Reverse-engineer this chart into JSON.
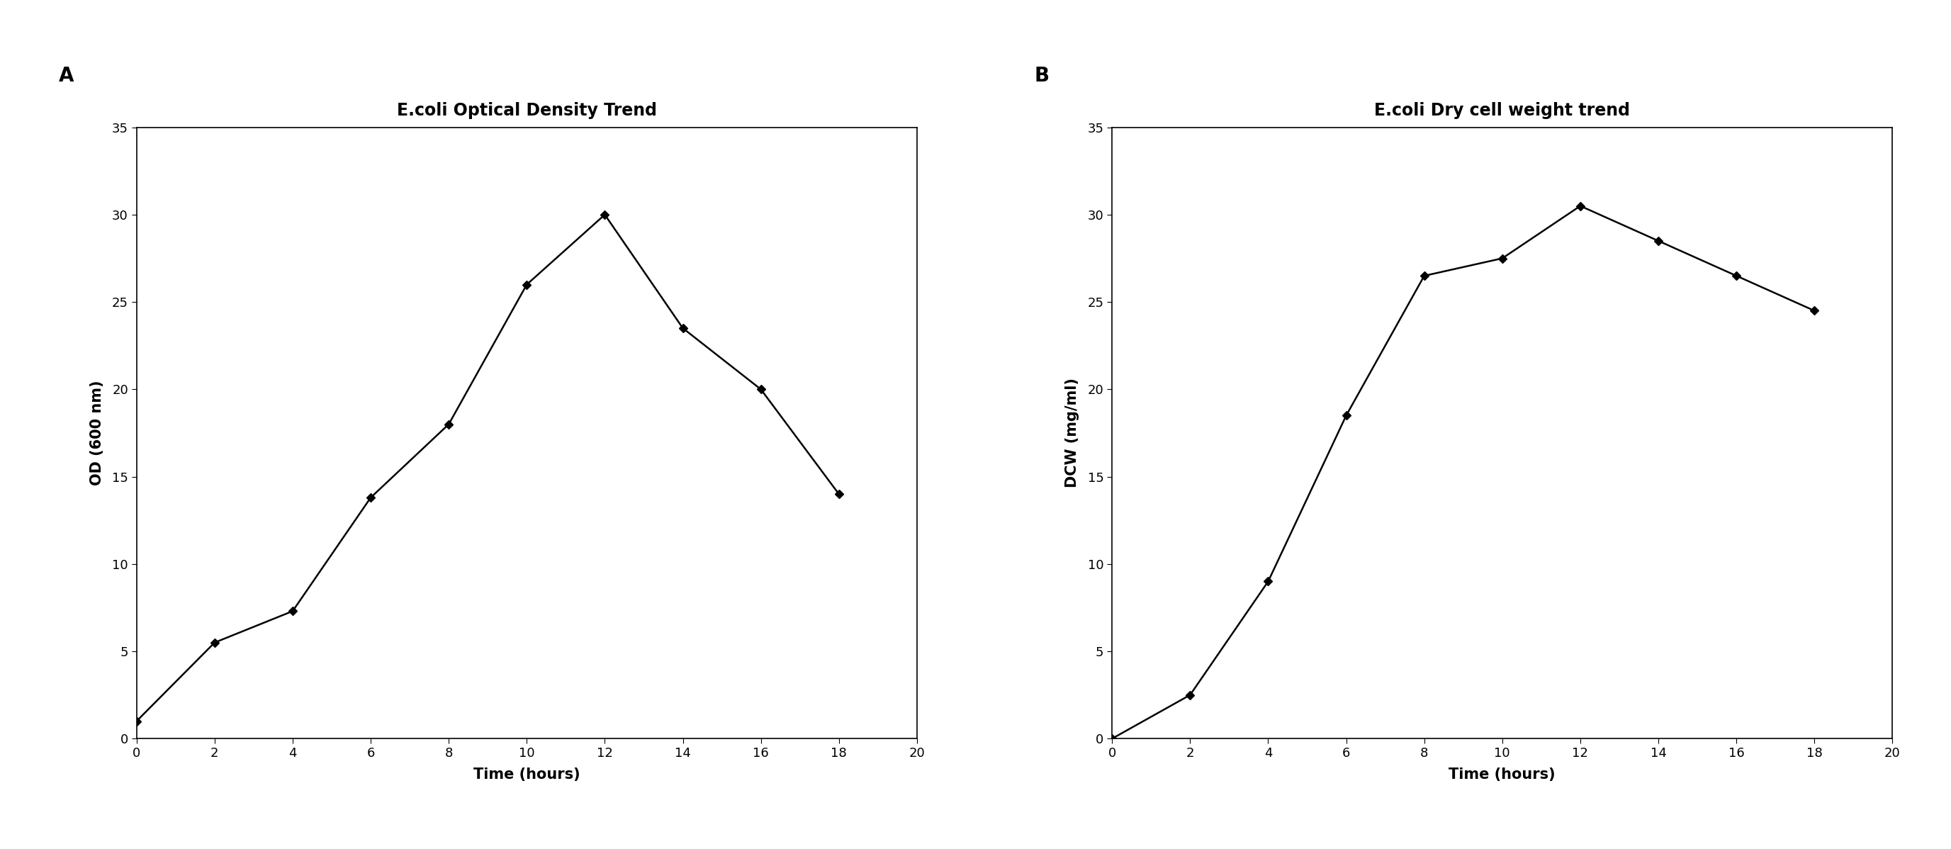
{
  "panel_A": {
    "title": "E.coli Optical Density Trend",
    "xlabel": "Time (hours)",
    "ylabel": "OD (600 nm)",
    "x": [
      0,
      2,
      4,
      6,
      8,
      10,
      12,
      14,
      16,
      18
    ],
    "y": [
      1,
      5.5,
      7.3,
      13.8,
      18,
      26,
      30,
      23.5,
      20,
      14
    ],
    "xlim": [
      0,
      20
    ],
    "ylim": [
      0,
      35
    ],
    "xticks": [
      0,
      2,
      4,
      6,
      8,
      10,
      12,
      14,
      16,
      18,
      20
    ],
    "yticks": [
      0,
      5,
      10,
      15,
      20,
      25,
      30,
      35
    ],
    "panel_label": "A"
  },
  "panel_B": {
    "title": "E.coli Dry cell weight trend",
    "xlabel": "Time (hours)",
    "ylabel": "DCW (mg/ml)",
    "x": [
      0,
      2,
      4,
      6,
      8,
      10,
      12,
      14,
      16,
      18
    ],
    "y": [
      0,
      2.5,
      9,
      18.5,
      26.5,
      27.5,
      30.5,
      28.5,
      26.5,
      24.5
    ],
    "xlim": [
      0,
      20
    ],
    "ylim": [
      0,
      35
    ],
    "xticks": [
      0,
      2,
      4,
      6,
      8,
      10,
      12,
      14,
      16,
      18,
      20
    ],
    "yticks": [
      0,
      5,
      10,
      15,
      20,
      25,
      30,
      35
    ],
    "panel_label": "B"
  },
  "line_color": "#000000",
  "marker": "D",
  "marker_size": 6,
  "marker_color": "#000000",
  "background_color": "#ffffff",
  "title_fontsize": 17,
  "label_fontsize": 15,
  "tick_fontsize": 13,
  "panel_label_fontsize": 20
}
